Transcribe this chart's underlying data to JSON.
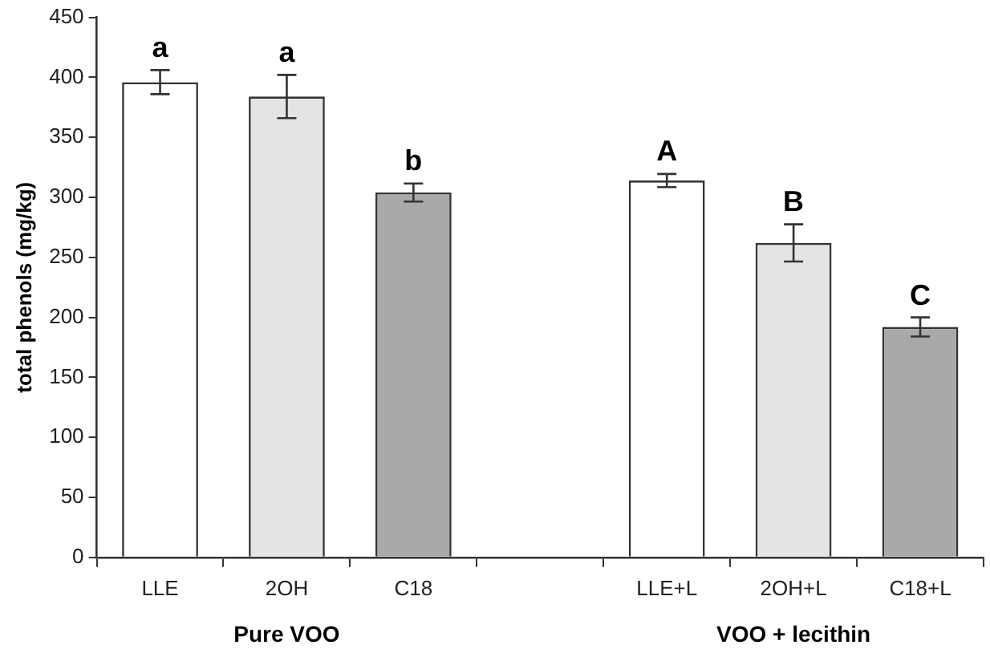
{
  "chart_data": {
    "type": "bar",
    "ylabel": "total phenols (mg/kg)",
    "categories": [
      "LLE",
      "2OH",
      "C18",
      null,
      "LLE+L",
      "2OH+L",
      "C18+L"
    ],
    "values": [
      396,
      384,
      304,
      null,
      314,
      262,
      192
    ],
    "errors": [
      10,
      18,
      7.5,
      null,
      5.5,
      15.5,
      8
    ],
    "colors": [
      "#ffffff",
      "#e4e4e4",
      "#a9a9a9",
      null,
      "#ffffff",
      "#e4e4e4",
      "#a9a9a9"
    ],
    "ylim": [
      0,
      450
    ],
    "yticks": [
      0,
      50,
      100,
      150,
      200,
      250,
      300,
      350,
      400,
      450
    ],
    "grid": false,
    "legend": false,
    "annotations": [
      "Pure VOO",
      "VOO + lecithin",
      {
        "text": "a",
        "x": "LLE",
        "y": 406
      },
      {
        "text": "a",
        "x": "2OH",
        "y": 402
      },
      {
        "text": "b",
        "x": "C18",
        "y": 312
      },
      {
        "text": "A",
        "x": "LLE+L",
        "y": 320
      },
      {
        "text": "B",
        "x": "2OH+L",
        "y": 278
      },
      {
        "text": "C",
        "x": "C18+L",
        "y": 200
      }
    ]
  }
}
